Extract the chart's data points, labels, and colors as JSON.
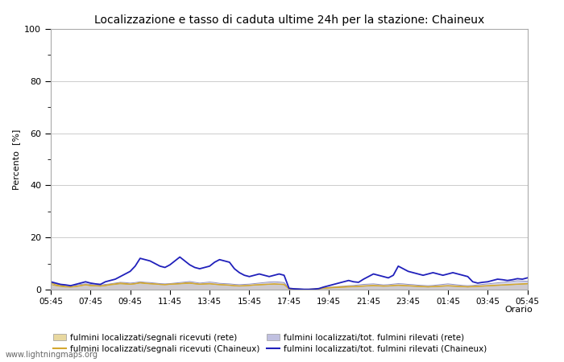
{
  "title": "Localizzazione e tasso di caduta ultime 24h per la stazione: Chaineux",
  "ylabel": "Percento  [%]",
  "xlabel": "Orario",
  "ylim": [
    0,
    100
  ],
  "yticks": [
    0,
    20,
    40,
    60,
    80,
    100
  ],
  "x_labels": [
    "05:45",
    "07:45",
    "09:45",
    "11:45",
    "13:45",
    "15:45",
    "17:45",
    "19:45",
    "21:45",
    "23:45",
    "01:45",
    "03:45",
    "05:45"
  ],
  "background_color": "#ffffff",
  "plot_bg_color": "#ffffff",
  "watermark": "www.lightningmaps.org",
  "color_rete_fill": "#e8d8a0",
  "color_rete_fill_alpha": 0.85,
  "color_rete_line": "#c8a830",
  "color_rete_tot_fill": "#c0c0e0",
  "color_rete_tot_fill_alpha": 0.65,
  "color_rete_tot_line": "#9090c0",
  "color_chaineux_line": "#d4a830",
  "color_chaineux_tot_line": "#2020bb",
  "legend_labels": [
    "fulmini localizzati/segnali ricevuti (rete)",
    "fulmini localizzati/segnali ricevuti (Chaineux)",
    "fulmini localizzati/tot. fulmini rilevati (rete)",
    "fulmini localizzati/tot. fulmini rilevati (Chaineux)"
  ],
  "n_points": 97,
  "rete_segnali": [
    2.0,
    1.5,
    1.2,
    1.0,
    1.0,
    1.2,
    1.5,
    1.8,
    1.5,
    1.4,
    1.3,
    1.5,
    1.8,
    2.0,
    2.2,
    2.1,
    2.0,
    2.2,
    2.5,
    2.3,
    2.2,
    2.1,
    2.0,
    1.9,
    2.0,
    2.1,
    2.2,
    2.3,
    2.4,
    2.2,
    2.0,
    2.1,
    2.2,
    2.0,
    1.9,
    1.8,
    1.7,
    1.5,
    1.4,
    1.5,
    1.6,
    1.7,
    1.8,
    1.9,
    2.0,
    2.1,
    2.0,
    1.9,
    0.3,
    0.2,
    0.2,
    0.1,
    0.1,
    0.2,
    0.3,
    0.5,
    0.6,
    0.7,
    0.8,
    0.9,
    1.0,
    1.1,
    1.2,
    1.3,
    1.4,
    1.5,
    1.4,
    1.3,
    1.4,
    1.5,
    1.6,
    1.5,
    1.4,
    1.3,
    1.2,
    1.1,
    1.0,
    1.1,
    1.2,
    1.3,
    1.4,
    1.3,
    1.2,
    1.1,
    1.0,
    1.1,
    1.2,
    1.3,
    1.4,
    1.5,
    1.6,
    1.7,
    1.8,
    1.9,
    2.0,
    2.1,
    2.2
  ],
  "rete_tot": [
    2.5,
    2.2,
    1.8,
    1.6,
    1.5,
    1.7,
    2.0,
    2.2,
    2.0,
    1.8,
    1.7,
    2.0,
    2.2,
    2.5,
    2.8,
    2.7,
    2.5,
    2.7,
    3.0,
    2.8,
    2.7,
    2.5,
    2.3,
    2.2,
    2.3,
    2.5,
    2.7,
    2.9,
    3.1,
    2.8,
    2.5,
    2.7,
    2.9,
    2.7,
    2.4,
    2.3,
    2.2,
    2.0,
    1.9,
    2.0,
    2.1,
    2.3,
    2.5,
    2.7,
    2.9,
    3.0,
    2.9,
    2.7,
    0.5,
    0.3,
    0.3,
    0.2,
    0.2,
    0.3,
    0.4,
    0.7,
    0.9,
    1.0,
    1.2,
    1.3,
    1.5,
    1.6,
    1.8,
    2.0,
    2.1,
    2.2,
    2.0,
    1.8,
    1.9,
    2.1,
    2.3,
    2.2,
    2.0,
    1.9,
    1.7,
    1.6,
    1.5,
    1.6,
    1.8,
    2.0,
    2.2,
    2.0,
    1.8,
    1.6,
    1.5,
    1.6,
    1.8,
    2.0,
    2.2,
    2.4,
    2.6,
    2.8,
    3.0,
    3.2,
    3.4,
    3.3,
    3.2
  ],
  "chaineux_segnali": [
    2.8,
    1.8,
    1.5,
    1.2,
    1.0,
    1.2,
    1.5,
    1.9,
    1.6,
    1.5,
    1.4,
    1.6,
    2.0,
    2.2,
    2.5,
    2.3,
    2.1,
    2.3,
    2.7,
    2.5,
    2.3,
    2.2,
    2.0,
    1.9,
    2.1,
    2.2,
    2.3,
    2.5,
    2.6,
    2.3,
    2.1,
    2.2,
    2.3,
    2.1,
    1.9,
    1.8,
    1.7,
    1.5,
    1.4,
    1.5,
    1.6,
    1.8,
    1.9,
    2.0,
    2.1,
    2.2,
    2.1,
    2.0,
    0.3,
    0.2,
    0.1,
    0.1,
    0.1,
    0.2,
    0.3,
    0.6,
    0.7,
    0.9,
    1.0,
    1.1,
    1.2,
    1.2,
    1.3,
    1.4,
    1.5,
    1.6,
    1.5,
    1.4,
    1.4,
    1.6,
    1.7,
    1.6,
    1.5,
    1.4,
    1.3,
    1.2,
    1.1,
    1.2,
    1.3,
    1.4,
    1.5,
    1.4,
    1.3,
    1.2,
    1.1,
    1.2,
    1.3,
    1.4,
    1.5,
    1.6,
    1.7,
    1.8,
    1.9,
    2.0,
    2.1,
    2.2,
    2.3
  ],
  "chaineux_tot": [
    3.0,
    2.5,
    2.0,
    1.8,
    1.5,
    2.0,
    2.5,
    3.0,
    2.5,
    2.2,
    2.0,
    3.0,
    3.5,
    4.0,
    5.0,
    6.0,
    7.0,
    9.0,
    12.0,
    11.5,
    11.0,
    10.0,
    9.0,
    8.5,
    9.5,
    11.0,
    12.5,
    11.0,
    9.5,
    8.5,
    8.0,
    8.5,
    9.0,
    10.5,
    11.5,
    11.0,
    10.5,
    8.0,
    6.5,
    5.5,
    5.0,
    5.5,
    6.0,
    5.5,
    5.0,
    5.5,
    6.0,
    5.5,
    0.5,
    0.3,
    0.2,
    0.1,
    0.1,
    0.2,
    0.4,
    1.0,
    1.5,
    2.0,
    2.5,
    3.0,
    3.5,
    3.0,
    2.8,
    4.0,
    5.0,
    6.0,
    5.5,
    5.0,
    4.5,
    5.5,
    9.0,
    8.0,
    7.0,
    6.5,
    6.0,
    5.5,
    6.0,
    6.5,
    6.0,
    5.5,
    6.0,
    6.5,
    6.0,
    5.5,
    5.0,
    3.0,
    2.5,
    2.8,
    3.0,
    3.5,
    4.0,
    3.8,
    3.5,
    3.8,
    4.2,
    4.0,
    4.5
  ]
}
